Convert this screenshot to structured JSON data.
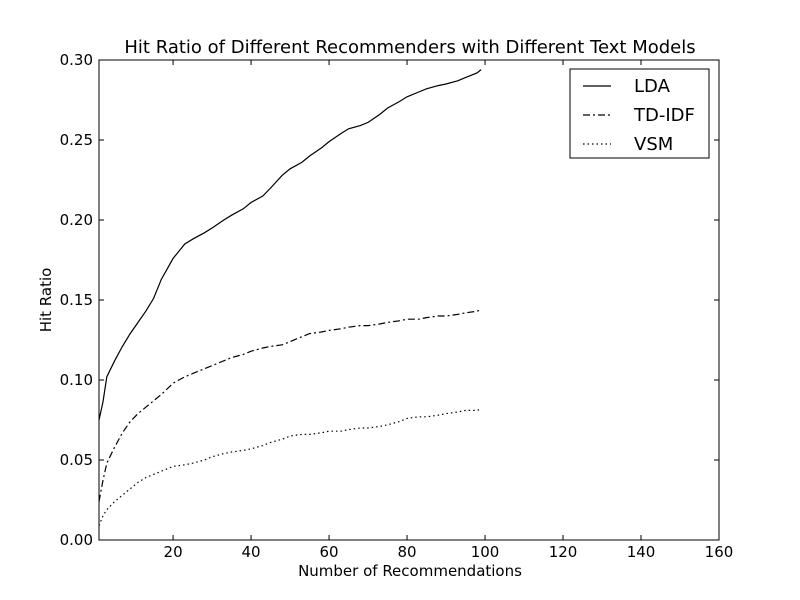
{
  "chart_data": {
    "type": "line",
    "title": "Hit Ratio of Different Recommenders with Different Text Models",
    "xlabel": "Number of Recommendations",
    "ylabel": "Hit Ratio",
    "xlim": [
      1,
      160
    ],
    "ylim": [
      0,
      0.3
    ],
    "xticks": [
      20,
      40,
      60,
      80,
      100,
      120,
      140,
      160
    ],
    "yticks": [
      0.0,
      0.05,
      0.1,
      0.15,
      0.2,
      0.25,
      0.3
    ],
    "xtick_labels": [
      "20",
      "40",
      "60",
      "80",
      "100",
      "120",
      "140",
      "160"
    ],
    "ytick_labels": [
      "0.00",
      "0.05",
      "0.10",
      "0.15",
      "0.20",
      "0.25",
      "0.30"
    ],
    "grid": false,
    "legend_position": "top-right",
    "x": [
      1,
      2,
      3,
      5,
      7,
      9,
      11,
      13,
      15,
      17,
      20,
      23,
      25,
      28,
      30,
      33,
      35,
      38,
      40,
      43,
      45,
      48,
      50,
      53,
      55,
      58,
      60,
      63,
      65,
      68,
      70,
      73,
      75,
      78,
      80,
      83,
      85,
      88,
      90,
      93,
      95,
      98,
      99
    ],
    "series": [
      {
        "name": "LDA",
        "style": "solid",
        "values": [
          0.075,
          0.086,
          0.102,
          0.112,
          0.121,
          0.129,
          0.136,
          0.143,
          0.151,
          0.163,
          0.176,
          0.185,
          0.188,
          0.192,
          0.195,
          0.2,
          0.203,
          0.207,
          0.211,
          0.215,
          0.22,
          0.228,
          0.232,
          0.236,
          0.24,
          0.245,
          0.249,
          0.254,
          0.257,
          0.259,
          0.261,
          0.266,
          0.27,
          0.274,
          0.277,
          0.28,
          0.282,
          0.284,
          0.285,
          0.287,
          0.289,
          0.292,
          0.294
        ]
      },
      {
        "name": "TD-IDF",
        "style": "dashdot",
        "values": [
          0.024,
          0.037,
          0.048,
          0.058,
          0.067,
          0.074,
          0.079,
          0.083,
          0.087,
          0.091,
          0.098,
          0.102,
          0.104,
          0.107,
          0.109,
          0.112,
          0.114,
          0.116,
          0.118,
          0.12,
          0.121,
          0.122,
          0.124,
          0.127,
          0.129,
          0.13,
          0.131,
          0.132,
          0.133,
          0.134,
          0.134,
          0.135,
          0.136,
          0.137,
          0.138,
          0.138,
          0.139,
          0.14,
          0.14,
          0.141,
          0.142,
          0.143,
          0.144
        ]
      },
      {
        "name": "VSM",
        "style": "dotted",
        "values": [
          0.009,
          0.015,
          0.019,
          0.024,
          0.028,
          0.032,
          0.036,
          0.039,
          0.041,
          0.043,
          0.046,
          0.047,
          0.048,
          0.05,
          0.052,
          0.054,
          0.055,
          0.056,
          0.057,
          0.059,
          0.061,
          0.063,
          0.065,
          0.066,
          0.066,
          0.067,
          0.068,
          0.068,
          0.069,
          0.07,
          0.07,
          0.071,
          0.072,
          0.074,
          0.076,
          0.077,
          0.077,
          0.078,
          0.079,
          0.08,
          0.081,
          0.081,
          0.082
        ]
      }
    ]
  }
}
